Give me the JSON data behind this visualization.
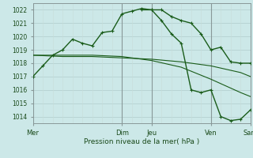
{
  "background_color": "#cce8e8",
  "grid_color_major": "#b8d8d0",
  "grid_color_minor": "#d4e8e4",
  "line_color": "#1a5c1a",
  "ylim": [
    1013.5,
    1022.5
  ],
  "yticks": [
    1014,
    1015,
    1016,
    1017,
    1018,
    1019,
    1020,
    1021,
    1022
  ],
  "xlabel": "Pression niveau de la mer( hPa )",
  "xtick_labels": [
    "Mer",
    "Dim",
    "Jeu",
    "Ven",
    "Sam"
  ],
  "xtick_positions": [
    0,
    9,
    12,
    18,
    22
  ],
  "vlines": [
    0,
    9,
    12,
    18,
    22
  ],
  "series1_x": [
    0,
    1,
    2,
    3,
    4,
    5,
    6,
    7,
    8,
    9,
    10,
    11,
    12,
    13,
    14,
    15,
    16,
    17,
    18,
    19,
    20,
    21,
    22
  ],
  "series1_y": [
    1017.0,
    1017.8,
    1018.6,
    1019.0,
    1019.8,
    1019.5,
    1019.3,
    1020.3,
    1020.4,
    1021.7,
    1021.9,
    1022.1,
    1022.0,
    1022.0,
    1021.5,
    1021.2,
    1021.0,
    1020.2,
    1019.0,
    1019.2,
    1018.1,
    1018.0,
    1018.0
  ],
  "series2_x": [
    0,
    3,
    6,
    9,
    12,
    15,
    18,
    21,
    22
  ],
  "series2_y": [
    1018.6,
    1018.5,
    1018.5,
    1018.4,
    1018.3,
    1018.1,
    1017.8,
    1017.3,
    1017.0
  ],
  "series3_x": [
    0,
    3,
    6,
    9,
    12,
    15,
    18,
    21,
    22
  ],
  "series3_y": [
    1018.6,
    1018.6,
    1018.6,
    1018.5,
    1018.2,
    1017.7,
    1016.8,
    1015.8,
    1015.5
  ],
  "series4_x": [
    11,
    12,
    13,
    14,
    15,
    16,
    17,
    18,
    19,
    20,
    21,
    22
  ],
  "series4_y": [
    1022.0,
    1022.0,
    1021.2,
    1020.2,
    1019.5,
    1016.0,
    1015.8,
    1016.0,
    1014.0,
    1013.7,
    1013.8,
    1014.5
  ],
  "figsize": [
    3.2,
    2.0
  ],
  "dpi": 100
}
